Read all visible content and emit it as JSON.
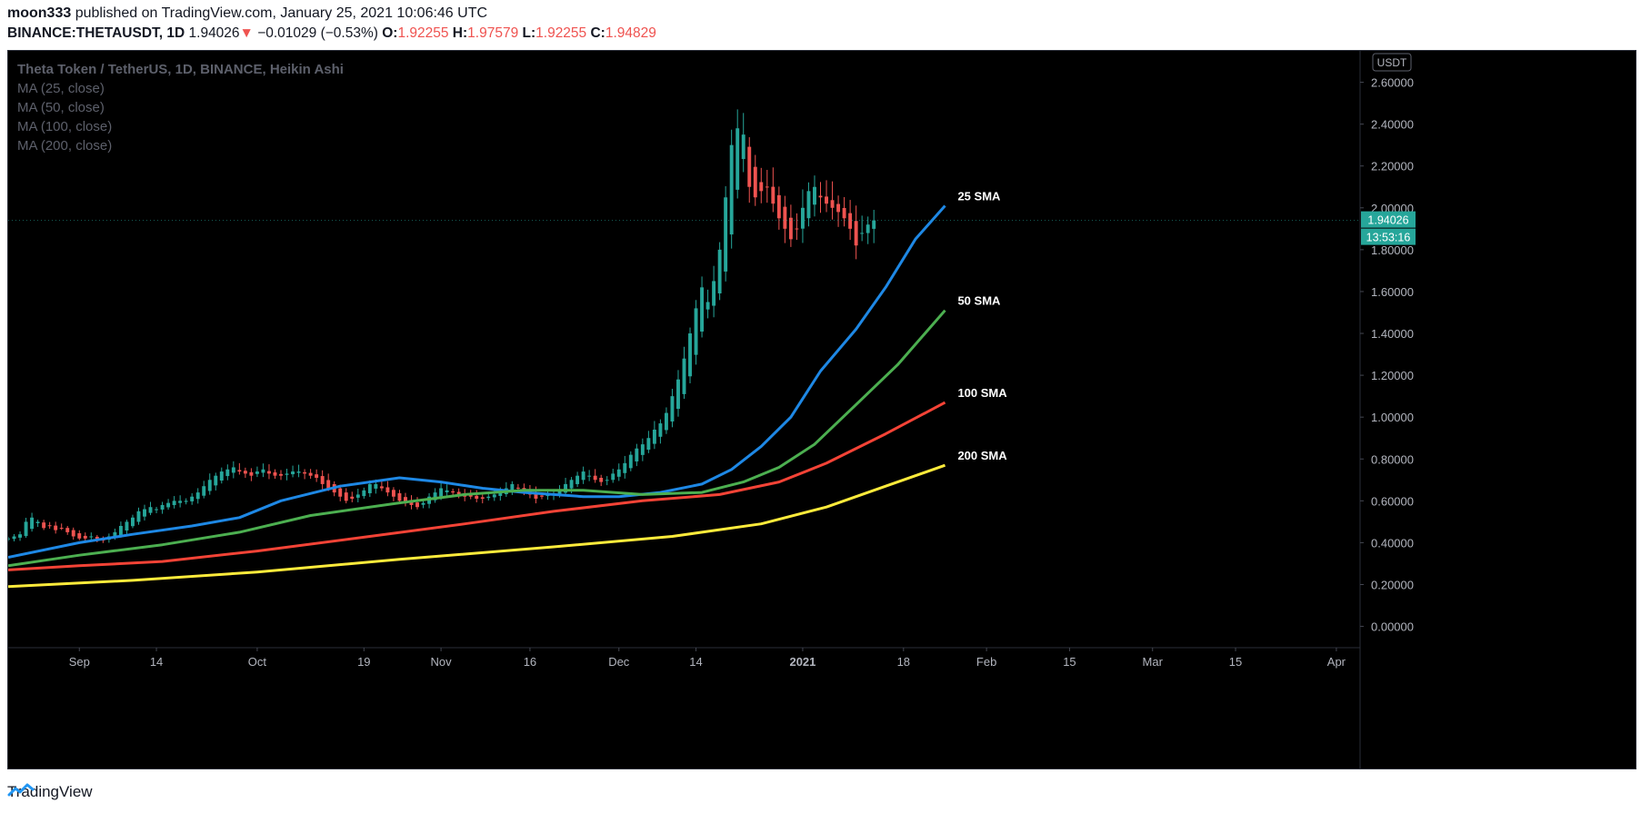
{
  "header": {
    "author": "moon333",
    "published_text": "published on TradingView.com, January 25, 2021 10:06:46 UTC",
    "symbol": "BINANCE:THETAUSDT, 1D",
    "last_price": "1.94026",
    "change_arrow": "▼",
    "change": "−0.01029 (−0.53%)",
    "o_label": "O:",
    "o_value": "1.92255",
    "h_label": "H:",
    "h_value": "1.97579",
    "l_label": "L:",
    "l_value": "1.92255",
    "c_label": "C:",
    "c_value": "1.94829"
  },
  "legend": {
    "title": "Theta Token / TetherUS, 1D, BINANCE, Heikin Ashi",
    "items": [
      "MA (25, close)",
      "MA (50, close)",
      "MA (100, close)",
      "MA (200, close)"
    ]
  },
  "footer": {
    "brand": "TradingView"
  },
  "colors": {
    "up": "#26a69a",
    "down": "#ef5350",
    "ma25": "#1e88e5",
    "ma50": "#4caf50",
    "ma100": "#f44336",
    "ma200": "#ffeb3b",
    "background": "#000000",
    "axis_text": "#b2b5be"
  },
  "chart_data": {
    "type": "candlestick",
    "title": "Theta Token / TetherUS, 1D, BINANCE, Heikin Ashi",
    "currency_badge": "USDT",
    "ylim": [
      -0.08,
      2.75
    ],
    "y_ticks": [
      "2.60000",
      "2.40000",
      "2.20000",
      "2.00000",
      "1.80000",
      "1.60000",
      "1.40000",
      "1.20000",
      "1.00000",
      "0.80000",
      "0.60000",
      "0.40000",
      "0.20000",
      "0.00000"
    ],
    "y_tick_values": [
      2.6,
      2.4,
      2.2,
      2.0,
      1.8,
      1.6,
      1.4,
      1.2,
      1.0,
      0.8,
      0.6,
      0.4,
      0.2,
      0.0
    ],
    "x_ticks": [
      {
        "label": "Sep",
        "date": "2020-09-01",
        "bold": false
      },
      {
        "label": "14",
        "date": "2020-09-14",
        "bold": false
      },
      {
        "label": "Oct",
        "date": "2020-10-01",
        "bold": false
      },
      {
        "label": "19",
        "date": "2020-10-19",
        "bold": false
      },
      {
        "label": "Nov",
        "date": "2020-11-01",
        "bold": false
      },
      {
        "label": "16",
        "date": "2020-11-16",
        "bold": false
      },
      {
        "label": "Dec",
        "date": "2020-12-01",
        "bold": false
      },
      {
        "label": "14",
        "date": "2020-12-14",
        "bold": false
      },
      {
        "label": "2021",
        "date": "2021-01-01",
        "bold": true
      },
      {
        "label": "18",
        "date": "2021-01-18",
        "bold": false
      },
      {
        "label": "Feb",
        "date": "2021-02-01",
        "bold": false
      },
      {
        "label": "15",
        "date": "2021-02-15",
        "bold": false
      },
      {
        "label": "Mar",
        "date": "2021-03-01",
        "bold": false
      },
      {
        "label": "15",
        "date": "2021-03-15",
        "bold": false
      },
      {
        "label": "Apr",
        "date": "2021-04-01",
        "bold": false
      }
    ],
    "x_range": [
      "2020-08-20",
      "2021-04-05"
    ],
    "first_candle_date": "2020-08-20",
    "close_series": [
      0.42,
      0.43,
      0.44,
      0.5,
      0.52,
      0.5,
      0.47,
      0.48,
      0.46,
      0.47,
      0.45,
      0.43,
      0.42,
      0.42,
      0.43,
      0.41,
      0.41,
      0.43,
      0.45,
      0.48,
      0.5,
      0.52,
      0.55,
      0.56,
      0.57,
      0.56,
      0.58,
      0.59,
      0.6,
      0.6,
      0.6,
      0.62,
      0.64,
      0.67,
      0.7,
      0.72,
      0.74,
      0.75,
      0.76,
      0.74,
      0.73,
      0.72,
      0.74,
      0.75,
      0.73,
      0.72,
      0.72,
      0.73,
      0.74,
      0.74,
      0.73,
      0.72,
      0.71,
      0.68,
      0.66,
      0.64,
      0.62,
      0.6,
      0.61,
      0.63,
      0.65,
      0.68,
      0.68,
      0.66,
      0.64,
      0.62,
      0.6,
      0.59,
      0.58,
      0.57,
      0.59,
      0.62,
      0.64,
      0.66,
      0.65,
      0.64,
      0.63,
      0.62,
      0.62,
      0.61,
      0.61,
      0.62,
      0.63,
      0.64,
      0.66,
      0.68,
      0.66,
      0.64,
      0.63,
      0.61,
      0.62,
      0.63,
      0.63,
      0.65,
      0.68,
      0.7,
      0.72,
      0.74,
      0.72,
      0.7,
      0.69,
      0.7,
      0.73,
      0.75,
      0.78,
      0.82,
      0.85,
      0.87,
      0.9,
      0.94,
      0.97,
      1.02,
      1.1,
      1.18,
      1.28,
      1.4,
      1.52,
      1.62,
      1.55,
      1.65,
      1.8,
      2.05,
      2.3,
      2.38,
      2.35,
      2.1,
      2.05,
      2.08,
      2.1,
      2.02,
      1.95,
      1.9,
      1.85,
      1.9,
      2.0,
      2.08,
      2.1,
      2.05,
      2.02,
      2.0,
      1.98,
      1.95,
      1.9,
      1.82,
      1.88,
      1.92,
      1.94
    ],
    "series": [
      {
        "name": "25 SMA",
        "label": "MA (25, close)",
        "color": "#1e88e5",
        "label_text": "25 SMA",
        "points": [
          [
            "2020-08-20",
            0.33
          ],
          [
            "2020-09-01",
            0.4
          ],
          [
            "2020-09-10",
            0.44
          ],
          [
            "2020-09-20",
            0.48
          ],
          [
            "2020-09-28",
            0.52
          ],
          [
            "2020-10-05",
            0.6
          ],
          [
            "2020-10-15",
            0.67
          ],
          [
            "2020-10-25",
            0.71
          ],
          [
            "2020-11-01",
            0.69
          ],
          [
            "2020-11-08",
            0.66
          ],
          [
            "2020-11-15",
            0.64
          ],
          [
            "2020-11-25",
            0.62
          ],
          [
            "2020-12-01",
            0.62
          ],
          [
            "2020-12-08",
            0.64
          ],
          [
            "2020-12-15",
            0.68
          ],
          [
            "2020-12-20",
            0.75
          ],
          [
            "2020-12-25",
            0.86
          ],
          [
            "2020-12-30",
            1.0
          ],
          [
            "2021-01-04",
            1.22
          ],
          [
            "2021-01-10",
            1.42
          ],
          [
            "2021-01-15",
            1.62
          ],
          [
            "2021-01-20",
            1.85
          ],
          [
            "2021-01-25",
            2.01
          ]
        ]
      },
      {
        "name": "50 SMA",
        "label": "MA (50, close)",
        "color": "#4caf50",
        "label_text": "50 SMA",
        "points": [
          [
            "2020-08-20",
            0.29
          ],
          [
            "2020-09-01",
            0.34
          ],
          [
            "2020-09-15",
            0.39
          ],
          [
            "2020-09-28",
            0.45
          ],
          [
            "2020-10-10",
            0.53
          ],
          [
            "2020-10-25",
            0.59
          ],
          [
            "2020-11-05",
            0.63
          ],
          [
            "2020-11-15",
            0.65
          ],
          [
            "2020-11-25",
            0.65
          ],
          [
            "2020-12-05",
            0.63
          ],
          [
            "2020-12-15",
            0.64
          ],
          [
            "2020-12-22",
            0.69
          ],
          [
            "2020-12-28",
            0.76
          ],
          [
            "2021-01-03",
            0.87
          ],
          [
            "2021-01-10",
            1.06
          ],
          [
            "2021-01-17",
            1.25
          ],
          [
            "2021-01-25",
            1.51
          ]
        ]
      },
      {
        "name": "100 SMA",
        "label": "MA (100, close)",
        "color": "#f44336",
        "label_text": "100 SMA",
        "points": [
          [
            "2020-08-20",
            0.27
          ],
          [
            "2020-09-01",
            0.29
          ],
          [
            "2020-09-15",
            0.31
          ],
          [
            "2020-10-01",
            0.36
          ],
          [
            "2020-10-20",
            0.43
          ],
          [
            "2020-11-05",
            0.49
          ],
          [
            "2020-11-20",
            0.55
          ],
          [
            "2020-12-05",
            0.6
          ],
          [
            "2020-12-18",
            0.63
          ],
          [
            "2020-12-28",
            0.69
          ],
          [
            "2021-01-05",
            0.78
          ],
          [
            "2021-01-15",
            0.92
          ],
          [
            "2021-01-25",
            1.07
          ]
        ]
      },
      {
        "name": "200 SMA",
        "label": "MA (200, close)",
        "color": "#ffeb3b",
        "label_text": "200 SMA",
        "points": [
          [
            "2020-08-20",
            0.19
          ],
          [
            "2020-09-10",
            0.22
          ],
          [
            "2020-10-01",
            0.26
          ],
          [
            "2020-10-25",
            0.32
          ],
          [
            "2020-11-20",
            0.38
          ],
          [
            "2020-12-10",
            0.43
          ],
          [
            "2020-12-25",
            0.49
          ],
          [
            "2021-01-05",
            0.57
          ],
          [
            "2021-01-15",
            0.67
          ],
          [
            "2021-01-25",
            0.77
          ]
        ]
      }
    ],
    "last_price_label": "1.94026",
    "countdown_label": "13:53:16",
    "grid": false
  }
}
